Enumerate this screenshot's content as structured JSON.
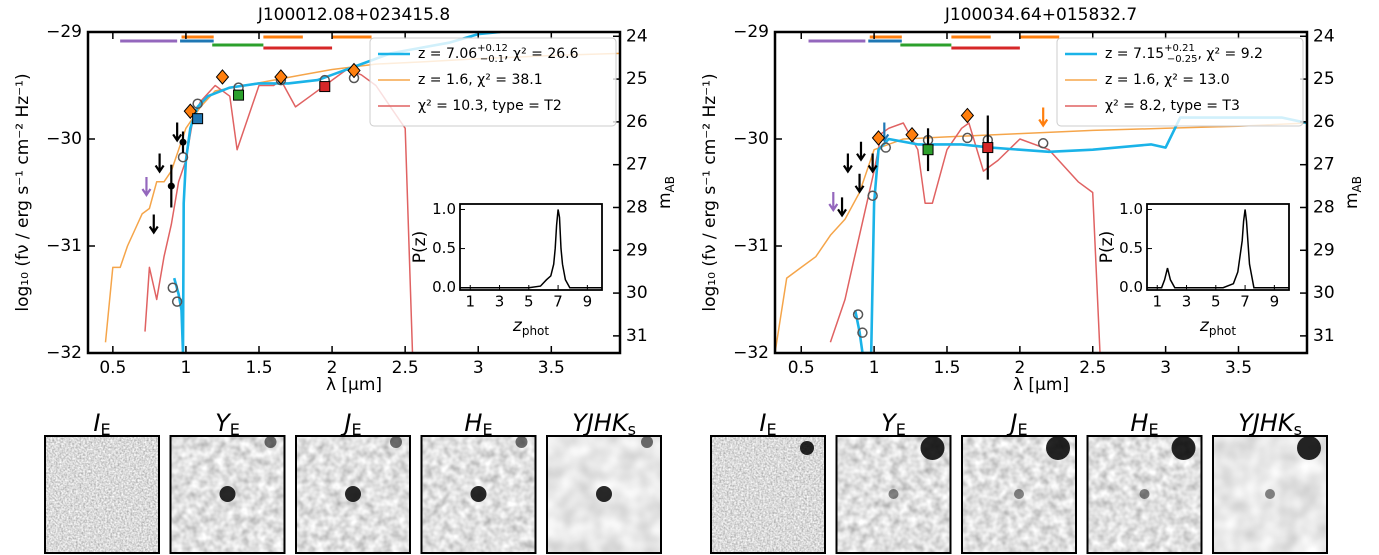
{
  "chart_data": [
    {
      "type": "line",
      "title": "J100012.08+023415.8",
      "xlabel": "λ [μm]",
      "ylabel": "log₁₀ (fν / erg s⁻¹ cm⁻² Hz⁻¹)",
      "y2label": "m",
      "y2label_sub": "AB",
      "xlim": [
        0.33,
        3.97
      ],
      "ylim": [
        -32,
        -29
      ],
      "y2lim": [
        31.4,
        23.9
      ],
      "xticks": [
        0.5,
        1,
        1.5,
        2,
        2.5,
        3,
        3.5
      ],
      "yticks": [
        {
          "value": -32,
          "label": "−32"
        },
        {
          "value": -31,
          "label": "−31"
        },
        {
          "value": -30,
          "label": "−30"
        },
        {
          "value": -29,
          "label": "−29"
        }
      ],
      "y2ticks": [
        24,
        25,
        26,
        27,
        28,
        29,
        30,
        31
      ],
      "series": [
        {
          "name": "z = 7.06",
          "name_sup": "+0.12",
          "name_sub": "−0.1",
          "name_suffix": ", χ² = 26.6",
          "color": "#1ab3e8",
          "x": [
            0.92,
            0.95,
            0.97,
            0.98,
            0.985,
            1.0,
            1.03,
            1.08,
            1.15,
            1.3,
            1.5,
            1.7,
            1.9,
            2.0,
            2.2,
            2.4,
            2.6,
            2.8,
            3.0,
            3.15
          ],
          "values": [
            -31.3,
            -31.45,
            -31.6,
            -32,
            -30.6,
            -30.2,
            -29.9,
            -29.7,
            -29.6,
            -29.52,
            -29.48,
            -29.48,
            -29.45,
            -29.4,
            -29.3,
            -29.2,
            -29.15,
            -29.1,
            -29.02,
            -29.0
          ]
        },
        {
          "name": "z = 1.6, χ² = 38.1",
          "color": "#f5a54a",
          "x": [
            0.45,
            0.5,
            0.55,
            0.6,
            0.65,
            0.7,
            0.75,
            0.8,
            0.85,
            0.9,
            0.95,
            1.0,
            1.1,
            1.2,
            1.4,
            1.6,
            1.8,
            2.0,
            2.3,
            2.6,
            3.0,
            3.5,
            3.97
          ],
          "values": [
            -31.9,
            -31.2,
            -31.2,
            -31.0,
            -30.85,
            -30.7,
            -30.65,
            -30.4,
            -30.4,
            -30.3,
            -30.1,
            -29.9,
            -29.7,
            -29.55,
            -29.5,
            -29.45,
            -29.4,
            -29.35,
            -29.3,
            -29.28,
            -29.25,
            -29.22,
            -29.2
          ]
        },
        {
          "name": "χ² = 10.3, type = T2",
          "color": "#e06262",
          "x": [
            0.72,
            0.75,
            0.8,
            0.85,
            0.9,
            0.95,
            1.0,
            1.05,
            1.1,
            1.2,
            1.3,
            1.35,
            1.4,
            1.5,
            1.6,
            1.65,
            1.75,
            1.85,
            1.95,
            2.1,
            2.2,
            2.3,
            2.4,
            2.5,
            2.55
          ],
          "values": [
            -31.8,
            -31.2,
            -31.5,
            -31.1,
            -30.8,
            -30.4,
            -30.2,
            -29.8,
            -29.65,
            -29.5,
            -29.6,
            -30.1,
            -29.9,
            -29.5,
            -29.5,
            -29.45,
            -29.7,
            -29.6,
            -29.5,
            -29.35,
            -29.4,
            -29.5,
            -29.7,
            -29.9,
            -32
          ]
        }
      ],
      "photometry": {
        "x": [
          0.73,
          0.78,
          0.9,
          0.82,
          0.94,
          0.98,
          1.03,
          1.25,
          1.65,
          2.15,
          1.08,
          1.36,
          1.95
        ],
        "values": [
          -30.43,
          -30.78,
          -30.44,
          -30.21,
          -29.92,
          -30.03,
          -29.74,
          -29.42,
          -29.42,
          -29.36,
          -29.81,
          -29.59,
          -29.51
        ],
        "errors": [
          null,
          null,
          0.2,
          null,
          null,
          0.1,
          null,
          null,
          null,
          null,
          null,
          null,
          null
        ],
        "colors": [
          "#9467bd",
          "#000000",
          "#000000",
          "#000000",
          "#000000",
          "#000000",
          "#ff7f0e",
          "#ff7f0e",
          "#ff7f0e",
          "#ff7f0e",
          "#1f77b4",
          "#2ca02c",
          "#d62728"
        ],
        "markers": [
          "arrow",
          "arrow",
          "circle",
          "arrow",
          "arrow",
          "circle",
          "diamond",
          "diamond",
          "diamond",
          "diamond",
          "square",
          "square",
          "square"
        ]
      },
      "model_photometry": {
        "x": [
          0.91,
          0.94,
          0.98,
          1.08,
          1.36,
          1.65,
          1.95,
          2.15
        ],
        "values": [
          -31.39,
          -31.52,
          -30.17,
          -29.67,
          -29.52,
          -29.45,
          -29.45,
          -29.43
        ]
      },
      "filters": {
        "x_start": [
          0.55,
          0.97,
          0.96,
          1.18,
          1.53,
          1.53,
          2.0
        ],
        "x_end": [
          0.94,
          1.19,
          1.19,
          1.53,
          1.8,
          2.0,
          2.27
        ],
        "colors": [
          "#9467bd",
          "#ff7f0e",
          "#1f77b4",
          "#2ca02c",
          "#ff7f0e",
          "#d62728",
          "#ff7f0e"
        ]
      },
      "inset": {
        "ylabel": "P(z)",
        "xlabel": "z",
        "xlabel_sub": "phot",
        "xlim": [
          0.3,
          10
        ],
        "ylim": [
          -0.03,
          1.07
        ],
        "xticks": [
          1,
          3,
          5,
          7,
          9
        ],
        "yticks": [
          {
            "value": 0,
            "label": "0.0"
          },
          {
            "value": 0.5,
            "label": "0.5"
          },
          {
            "value": 1,
            "label": "1.0"
          }
        ],
        "color": "#000000",
        "x": [
          0.3,
          5,
          5.8,
          6.2,
          6.5,
          6.7,
          6.8,
          6.9,
          7.0,
          7.1,
          7.2,
          7.3,
          7.5,
          7.8,
          10
        ],
        "values": [
          0,
          0,
          0.02,
          0.1,
          0.15,
          0.3,
          0.5,
          0.8,
          1.0,
          0.9,
          0.5,
          0.3,
          0.1,
          0,
          0
        ]
      },
      "cutouts": [
        {
          "label": "I",
          "sub": "E"
        },
        {
          "label": "Y",
          "sub": "E"
        },
        {
          "label": "J",
          "sub": "E"
        },
        {
          "label": "H",
          "sub": "E"
        },
        {
          "label": "YJHK",
          "sub": "s"
        }
      ]
    },
    {
      "type": "line",
      "title": "J100034.64+015832.7",
      "xlabel": "λ [μm]",
      "ylabel": "log₁₀ (fν / erg s⁻¹ cm⁻² Hz⁻¹)",
      "y2label": "m",
      "y2label_sub": "AB",
      "xlim": [
        0.32,
        3.97
      ],
      "ylim": [
        -32,
        -29
      ],
      "y2lim": [
        31.4,
        23.9
      ],
      "xticks": [
        0.5,
        1,
        1.5,
        2,
        2.5,
        3,
        3.5
      ],
      "yticks": [
        {
          "value": -32,
          "label": "−32"
        },
        {
          "value": -31,
          "label": "−31"
        },
        {
          "value": -30,
          "label": "−30"
        },
        {
          "value": -29,
          "label": "−29"
        }
      ],
      "y2ticks": [
        24,
        25,
        26,
        27,
        28,
        29,
        30,
        31
      ],
      "series": [
        {
          "name": "z = 7.15",
          "name_sup": "+0.21",
          "name_sub": "−0.25",
          "name_suffix": ", χ² = 9.2",
          "color": "#1ab3e8",
          "x": [
            0.87,
            0.9,
            0.92,
            0.98,
            1.0,
            1.03,
            1.1,
            1.3,
            1.6,
            1.8,
            2.0,
            2.2,
            2.5,
            2.9,
            3.0,
            3.1,
            3.3,
            3.5,
            3.8,
            3.97
          ],
          "values": [
            -31.6,
            -31.8,
            -32,
            -32,
            -30.6,
            -30.1,
            -30.0,
            -30.05,
            -30.05,
            -30.08,
            -30.1,
            -30.12,
            -30.1,
            -30.05,
            -30.08,
            -29.8,
            -29.8,
            -29.8,
            -29.8,
            -29.85
          ]
        },
        {
          "name": "z = 1.6, χ² = 13.0",
          "color": "#f5a54a",
          "x": [
            0.32,
            0.4,
            0.5,
            0.6,
            0.7,
            0.8,
            0.9,
            1.0,
            1.2,
            1.5,
            2.0,
            2.5,
            3.0,
            3.5,
            3.97
          ],
          "values": [
            -32.0,
            -31.3,
            -31.2,
            -31.1,
            -30.9,
            -30.75,
            -30.5,
            -30.1,
            -30.0,
            -29.98,
            -29.95,
            -29.92,
            -29.9,
            -29.88,
            -29.85
          ]
        },
        {
          "name": "χ² = 8.2, type = T3",
          "color": "#e06262",
          "x": [
            0.7,
            0.8,
            0.85,
            0.9,
            0.95,
            1.0,
            1.05,
            1.1,
            1.2,
            1.3,
            1.35,
            1.4,
            1.5,
            1.6,
            1.65,
            1.75,
            1.85,
            2.0,
            2.2,
            2.4,
            2.5,
            2.55
          ],
          "values": [
            -31.9,
            -31.5,
            -31.2,
            -30.9,
            -30.6,
            -30.3,
            -29.95,
            -29.9,
            -29.85,
            -30.1,
            -30.6,
            -30.6,
            -30.1,
            -29.9,
            -29.85,
            -30.3,
            -30.2,
            -30.0,
            -30.1,
            -30.4,
            -30.5,
            -32
          ]
        }
      ],
      "photometry": {
        "x": [
          0.72,
          0.78,
          0.82,
          0.9,
          0.91,
          0.99,
          1.07,
          1.03,
          1.26,
          1.64,
          1.37,
          1.78,
          2.16
        ],
        "values": [
          -30.57,
          -30.62,
          -30.21,
          -30.4,
          -30.1,
          -30.21,
          -29.92,
          -29.99,
          -29.96,
          -29.78,
          -30.1,
          -30.08,
          -29.78
        ],
        "errors": [
          null,
          null,
          null,
          null,
          null,
          null,
          null,
          null,
          null,
          null,
          0.2,
          0.3,
          null
        ],
        "colors": [
          "#9467bd",
          "#000000",
          "#000000",
          "#000000",
          "#000000",
          "#000000",
          "#1f77b4",
          "#ff7f0e",
          "#ff7f0e",
          "#ff7f0e",
          "#2ca02c",
          "#d62728",
          "#ff7f0e"
        ],
        "markers": [
          "arrow",
          "arrow",
          "arrow",
          "arrow",
          "arrow",
          "arrow",
          "arrow",
          "diamond",
          "diamond",
          "diamond",
          "square",
          "square",
          "arrow"
        ]
      },
      "model_photometry": {
        "x": [
          0.89,
          0.92,
          0.99,
          1.08,
          1.37,
          1.64,
          1.78,
          2.16
        ],
        "values": [
          -31.64,
          -31.81,
          -30.53,
          -30.08,
          -30.01,
          -29.99,
          -30.01,
          -30.04
        ]
      },
      "filters": {
        "x_start": [
          0.55,
          0.97,
          0.96,
          1.18,
          1.53,
          1.53,
          2.0
        ],
        "x_end": [
          0.94,
          1.19,
          1.19,
          1.53,
          1.8,
          2.0,
          2.27
        ],
        "colors": [
          "#9467bd",
          "#ff7f0e",
          "#1f77b4",
          "#2ca02c",
          "#ff7f0e",
          "#d62728",
          "#ff7f0e"
        ]
      },
      "inset": {
        "ylabel": "P(z)",
        "xlabel": "z",
        "xlabel_sub": "phot",
        "xlim": [
          0.3,
          10
        ],
        "ylim": [
          -0.03,
          1.07
        ],
        "xticks": [
          1,
          3,
          5,
          7,
          9
        ],
        "yticks": [
          {
            "value": 0,
            "label": "0.0"
          },
          {
            "value": 0.5,
            "label": "0.5"
          },
          {
            "value": 1,
            "label": "1.0"
          }
        ],
        "color": "#000000",
        "x": [
          0.3,
          1.3,
          1.5,
          1.7,
          1.9,
          2.2,
          5.5,
          6.2,
          6.5,
          6.8,
          6.9,
          7.0,
          7.1,
          7.3,
          7.6,
          10
        ],
        "values": [
          0,
          0,
          0.1,
          0.25,
          0.1,
          0,
          0,
          0.05,
          0.2,
          0.6,
          0.85,
          1.0,
          0.85,
          0.3,
          0,
          0
        ]
      },
      "cutouts": [
        {
          "label": "I",
          "sub": "E"
        },
        {
          "label": "Y",
          "sub": "E"
        },
        {
          "label": "J",
          "sub": "E"
        },
        {
          "label": "H",
          "sub": "E"
        },
        {
          "label": "YJHK",
          "sub": "s"
        }
      ]
    }
  ]
}
